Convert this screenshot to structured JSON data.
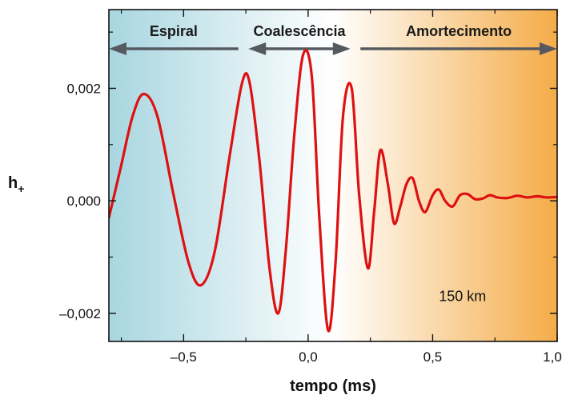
{
  "chart_data": {
    "type": "line",
    "title": "",
    "xlabel": "tempo (ms)",
    "ylabel": {
      "main": "h",
      "sub": "+"
    },
    "xlim": [
      -0.8,
      1.0
    ],
    "ylim": [
      -0.0025,
      0.0034
    ],
    "x_ticks": [
      {
        "value": -0.5,
        "label": "–0,5"
      },
      {
        "value": 0.0,
        "label": "0,0"
      },
      {
        "value": 0.5,
        "label": "0,5"
      },
      {
        "value": 1.0,
        "label": "1,0"
      }
    ],
    "y_ticks": [
      {
        "value": -0.002,
        "label": "–0,002"
      },
      {
        "value": 0.0,
        "label": "0,000"
      },
      {
        "value": 0.002,
        "label": "0,002"
      }
    ],
    "grid": false,
    "series": [
      {
        "color": "#dd1111",
        "x": [
          -0.8,
          -0.752,
          -0.705,
          -0.66,
          -0.605,
          -0.54,
          -0.48,
          -0.43,
          -0.375,
          -0.315,
          -0.265,
          -0.235,
          -0.195,
          -0.155,
          -0.12,
          -0.09,
          -0.055,
          -0.02,
          0.015,
          0.045,
          0.08,
          0.11,
          0.14,
          0.175,
          0.205,
          0.24,
          0.265,
          0.29,
          0.32,
          0.345,
          0.37,
          0.395,
          0.42,
          0.445,
          0.47,
          0.5,
          0.525,
          0.55,
          0.58,
          0.61,
          0.64,
          0.67,
          0.7,
          0.73,
          0.76,
          0.8,
          0.84,
          0.88,
          0.92,
          0.96,
          1.0
        ],
        "y": [
          -0.0003,
          0.0006,
          0.0015,
          0.0019,
          0.0015,
          0.0001,
          -0.0011,
          -0.0015,
          -0.0009,
          0.0008,
          0.0021,
          0.0021,
          0.0007,
          -0.0012,
          -0.002,
          -0.0009,
          0.0012,
          0.0026,
          0.0022,
          -0.0003,
          -0.0023,
          -0.0011,
          0.0015,
          0.002,
          0.0001,
          -0.0012,
          -0.0002,
          0.0009,
          0.0003,
          -0.0004,
          -0.0001,
          0.0003,
          0.0004,
          0.0,
          -0.0002,
          0.0001,
          0.0002,
          0.0,
          -0.0001,
          0.0001,
          0.00012,
          3e-05,
          4e-05,
          0.0001,
          6e-05,
          5e-05,
          9e-05,
          6e-05,
          8e-05,
          6e-05,
          7e-05
        ]
      }
    ],
    "phases": [
      {
        "label": "Espiral",
        "x_start": -0.8,
        "x_end": -0.28,
        "arrow": "left"
      },
      {
        "label": "Coalescência",
        "x_start": -0.24,
        "x_end": 0.17,
        "arrow": "both"
      },
      {
        "label": "Amortecimento",
        "x_start": 0.21,
        "x_end": 1.0,
        "arrow": "right"
      }
    ],
    "annotations": [
      {
        "text": "150 km",
        "x": 0.62,
        "y": -0.00178
      }
    ],
    "background_colors": {
      "left": "#a8d6e0",
      "middle": "#ffffff",
      "right": "#f4ac48"
    },
    "arrow_color": "#555a60"
  }
}
